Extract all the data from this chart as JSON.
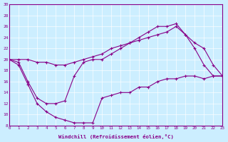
{
  "xlabel": "Windchill (Refroidissement éolien,°C)",
  "bg_color": "#cceeff",
  "line_color": "#880088",
  "xlim": [
    0,
    23
  ],
  "ylim": [
    8,
    30
  ],
  "xticks": [
    0,
    1,
    2,
    3,
    4,
    5,
    6,
    7,
    8,
    9,
    10,
    11,
    12,
    13,
    14,
    15,
    16,
    17,
    18,
    19,
    20,
    21,
    22,
    23
  ],
  "yticks": [
    8,
    10,
    12,
    14,
    16,
    18,
    20,
    22,
    24,
    26,
    28,
    30
  ],
  "line1_x": [
    0,
    1,
    2,
    3,
    4,
    5,
    6,
    7,
    8,
    9,
    10,
    11,
    12,
    13,
    14,
    15,
    16,
    17,
    18,
    19,
    20,
    21,
    22,
    23
  ],
  "line1_y": [
    20,
    19,
    15.5,
    12,
    10.5,
    9.5,
    9,
    8.5,
    8.5,
    8.5,
    13,
    13.5,
    14,
    14,
    15,
    15,
    16,
    16.5,
    16.5,
    17,
    17,
    16.5,
    17,
    17
  ],
  "line2_x": [
    0,
    1,
    2,
    3,
    4,
    5,
    6,
    7,
    8,
    9,
    10,
    11,
    12,
    13,
    14,
    15,
    16,
    17,
    18,
    19,
    20,
    21,
    22,
    23
  ],
  "line2_y": [
    20,
    19.5,
    16,
    13,
    12,
    12,
    12.5,
    17,
    19.5,
    20,
    20,
    21,
    22,
    23,
    24,
    25,
    26,
    26,
    26.5,
    24.5,
    22,
    19,
    17,
    17
  ],
  "line3_x": [
    0,
    1,
    2,
    3,
    4,
    5,
    6,
    7,
    8,
    9,
    10,
    11,
    12,
    13,
    14,
    15,
    16,
    17,
    18,
    19,
    20,
    21,
    22,
    23
  ],
  "line3_y": [
    20,
    20,
    20,
    19.5,
    19.5,
    19,
    19,
    19.5,
    20,
    20.5,
    21,
    22,
    22.5,
    23,
    23.5,
    24,
    24.5,
    25,
    26,
    24.5,
    23,
    22,
    19,
    17
  ]
}
